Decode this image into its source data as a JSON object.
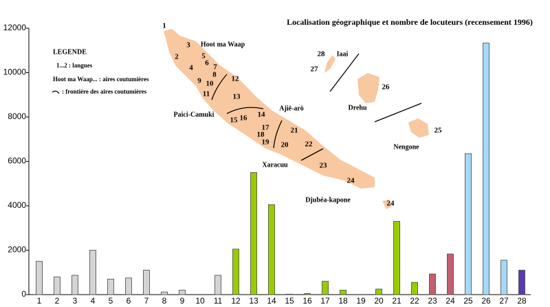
{
  "chart_data": {
    "type": "bar",
    "title": "Localisation géographique et nombre de locuteurs  (recensement 1996)",
    "categories": [
      "1",
      "2",
      "3",
      "4",
      "5",
      "6",
      "7",
      "8",
      "9",
      "10",
      "11",
      "12",
      "13",
      "14",
      "15",
      "16",
      "17",
      "18",
      "19",
      "20",
      "21",
      "22",
      "23",
      "24",
      "25",
      "26",
      "27",
      "28"
    ],
    "values": [
      1500,
      800,
      870,
      2000,
      700,
      750,
      1100,
      120,
      200,
      0,
      870,
      2050,
      5500,
      4050,
      20,
      50,
      600,
      200,
      0,
      250,
      3300,
      550,
      930,
      1830,
      6350,
      11330,
      1550,
      1100
    ],
    "colors": [
      "#d4d4d4",
      "#d4d4d4",
      "#d4d4d4",
      "#d4d4d4",
      "#d4d4d4",
      "#d4d4d4",
      "#d4d4d4",
      "#d4d4d4",
      "#d4d4d4",
      "#d4d4d4",
      "#d4d4d4",
      "#99cc00",
      "#99cc00",
      "#99cc00",
      "#99cc00",
      "#99cc00",
      "#99cc00",
      "#99cc00",
      "#99cc00",
      "#99cc00",
      "#99cc00",
      "#99cc00",
      "#c06070",
      "#c06070",
      "#a8d8f8",
      "#a8d8f8",
      "#a8d8f8",
      "#5a3ab0"
    ],
    "ylim": [
      0,
      12000
    ],
    "yticks": [
      0,
      2000,
      4000,
      6000,
      8000,
      10000,
      12000
    ],
    "grid": false,
    "legend": {
      "title": "LEGENDE",
      "items": [
        "1...2 :  langues",
        "Hoot ma Waap... :  aires coutumières",
        ":  frontière des aires coutumières"
      ]
    },
    "map_labels": [
      "1",
      "3",
      "Hoot ma Waap",
      "5",
      "2",
      "6",
      "7",
      "4",
      "8",
      "12",
      "9",
      "10",
      "11",
      "13",
      "Paici-Camuki",
      "Ajië-arö",
      "14",
      "15",
      "16",
      "17",
      "18",
      "19",
      "21",
      "20",
      "22",
      "23",
      "Xaracuu",
      "24",
      "Djubéa-kapone",
      "24",
      "28",
      "Iaai",
      "27",
      "26",
      "Drehu",
      "25",
      "Nengone"
    ]
  }
}
